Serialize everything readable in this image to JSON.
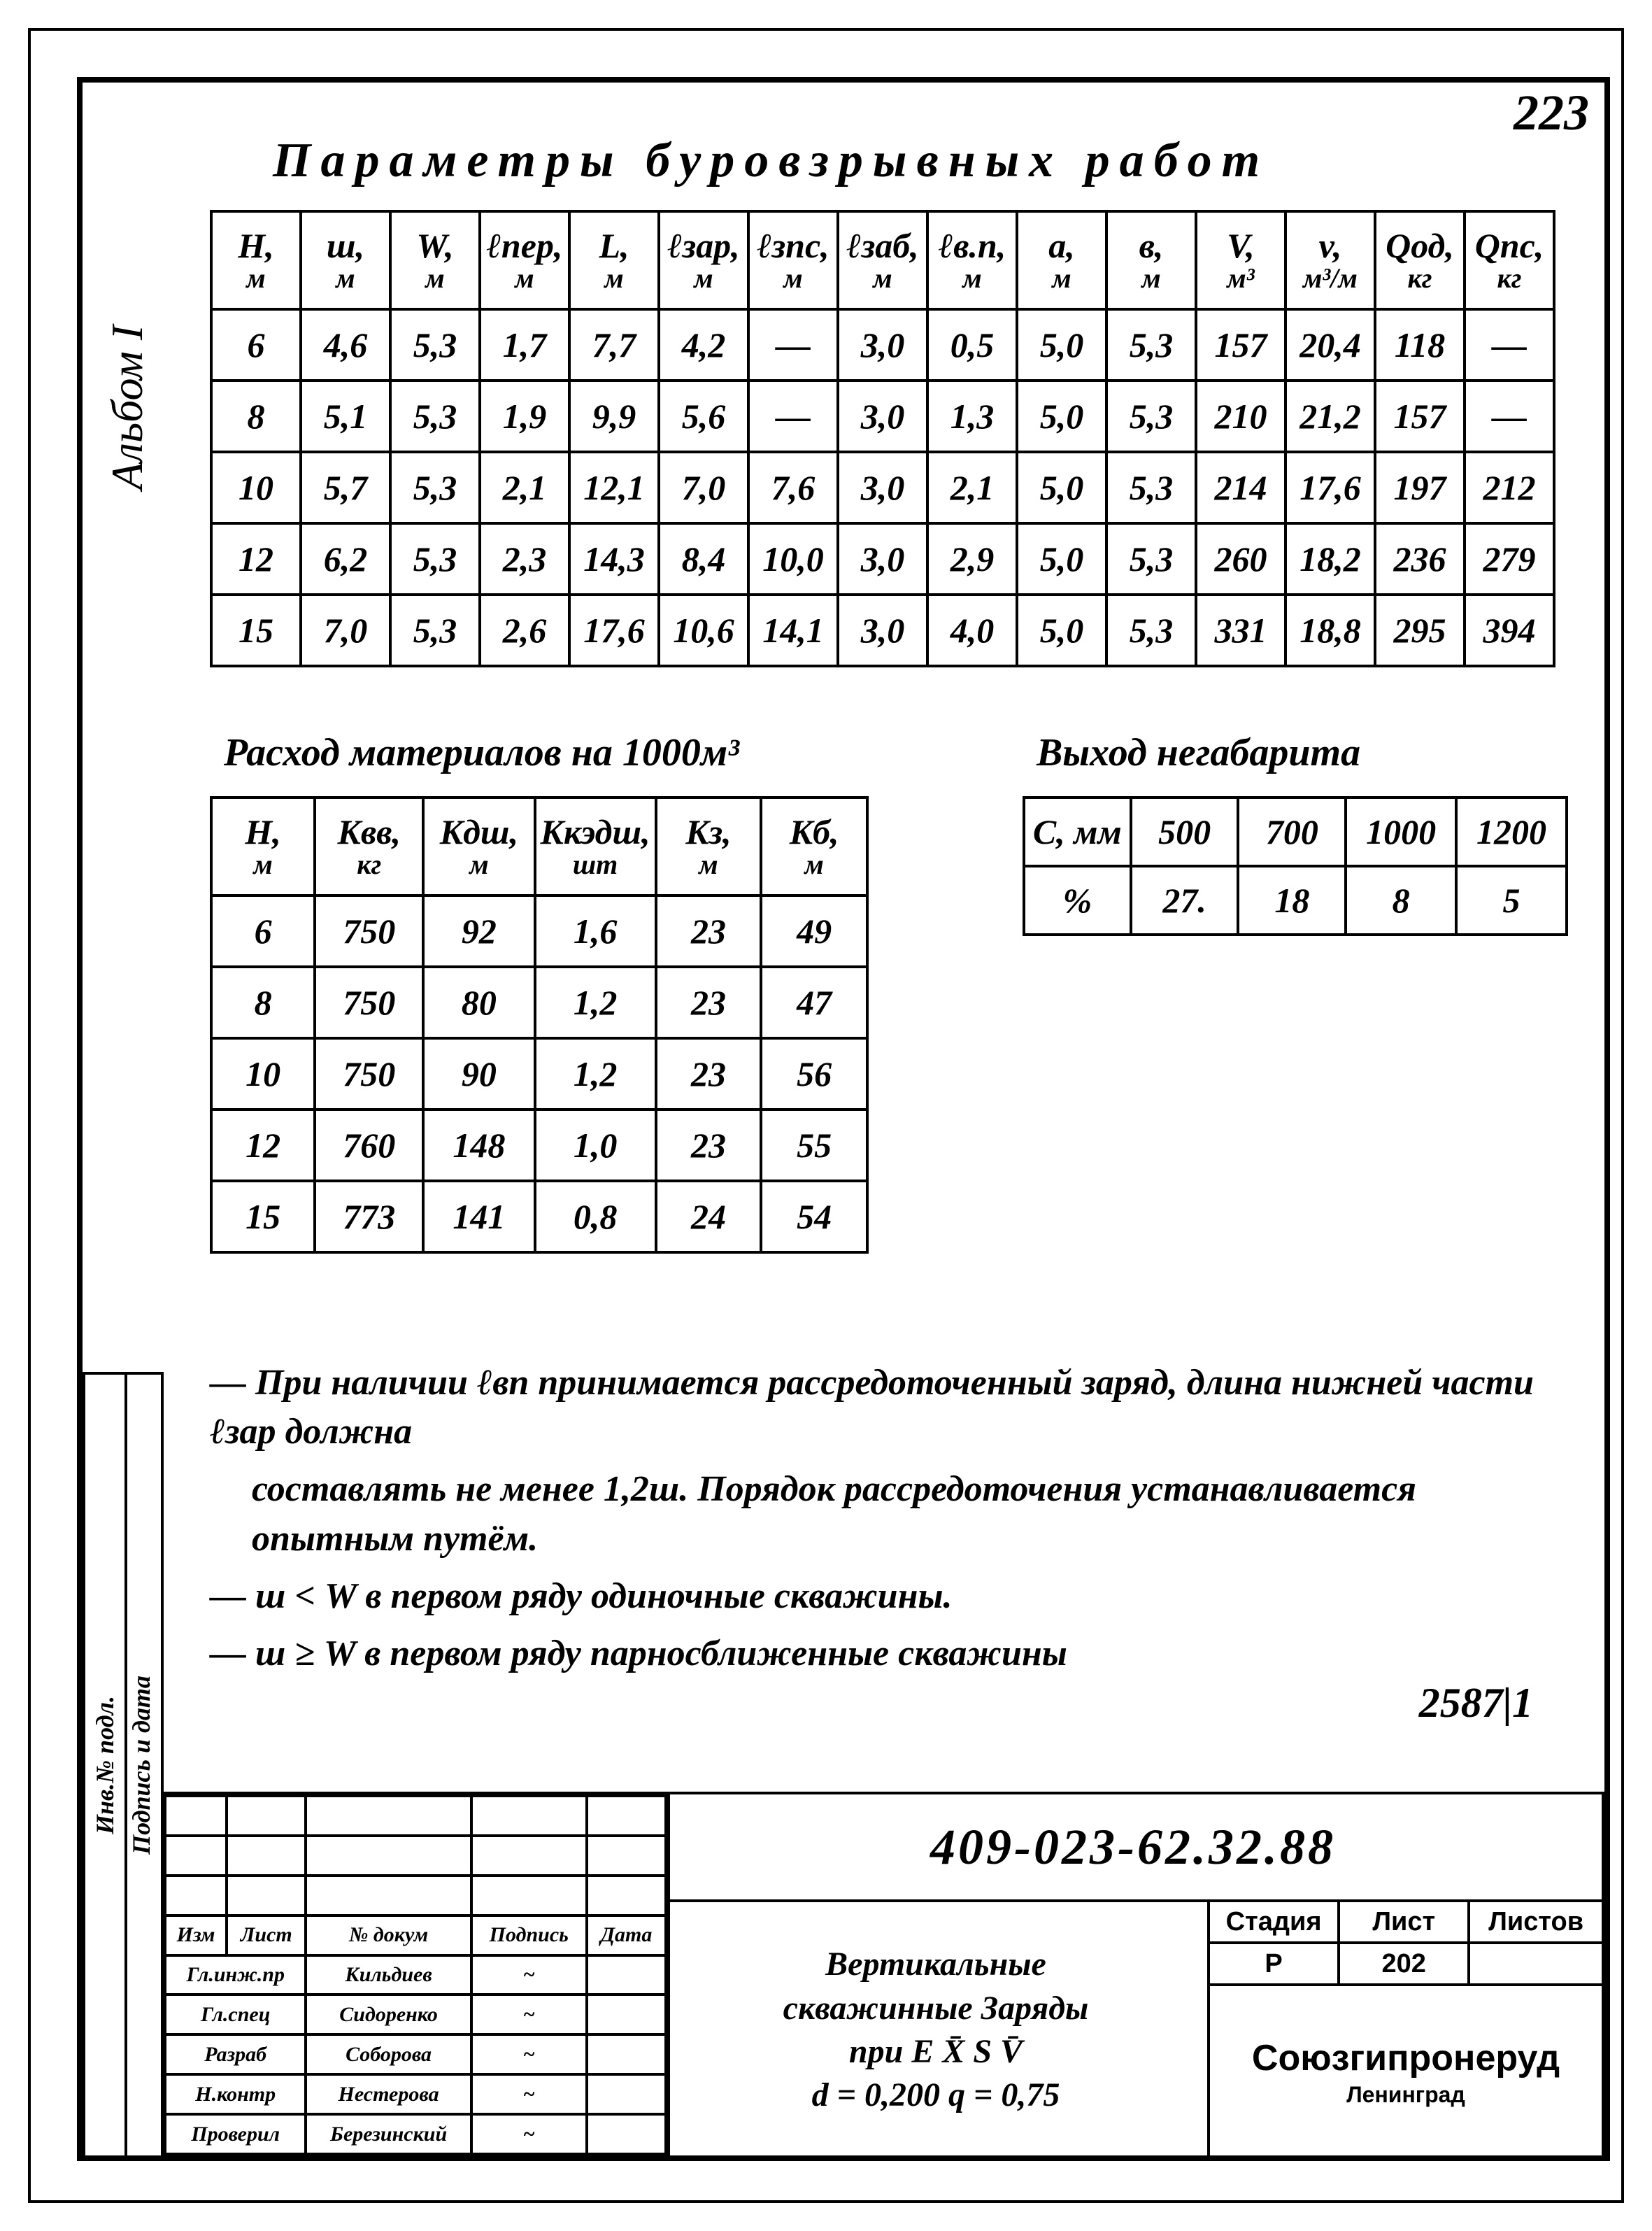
{
  "page_number": "223",
  "side_label": "Альбом I",
  "title": "Параметры буровзрывных работ",
  "table1": {
    "headers": [
      {
        "t": "H,",
        "u": "м"
      },
      {
        "t": "ш,",
        "u": "м"
      },
      {
        "t": "W,",
        "u": "м"
      },
      {
        "t": "ℓпер,",
        "u": "м"
      },
      {
        "t": "L,",
        "u": "м"
      },
      {
        "t": "ℓзар,",
        "u": "м"
      },
      {
        "t": "ℓзпс,",
        "u": "м"
      },
      {
        "t": "ℓзаб,",
        "u": "м"
      },
      {
        "t": "ℓв.п,",
        "u": "м"
      },
      {
        "t": "a,",
        "u": "м"
      },
      {
        "t": "в,",
        "u": "м"
      },
      {
        "t": "V,",
        "u": "м³"
      },
      {
        "t": "v,",
        "u": "м³/м"
      },
      {
        "t": "Qод,",
        "u": "кг"
      },
      {
        "t": "Qпс,",
        "u": "кг"
      }
    ],
    "rows": [
      [
        "6",
        "4,6",
        "5,3",
        "1,7",
        "7,7",
        "4,2",
        "—",
        "3,0",
        "0,5",
        "5,0",
        "5,3",
        "157",
        "20,4",
        "118",
        "—"
      ],
      [
        "8",
        "5,1",
        "5,3",
        "1,9",
        "9,9",
        "5,6",
        "—",
        "3,0",
        "1,3",
        "5,0",
        "5,3",
        "210",
        "21,2",
        "157",
        "—"
      ],
      [
        "10",
        "5,7",
        "5,3",
        "2,1",
        "12,1",
        "7,0",
        "7,6",
        "3,0",
        "2,1",
        "5,0",
        "5,3",
        "214",
        "17,6",
        "197",
        "212"
      ],
      [
        "12",
        "6,2",
        "5,3",
        "2,3",
        "14,3",
        "8,4",
        "10,0",
        "3,0",
        "2,9",
        "5,0",
        "5,3",
        "260",
        "18,2",
        "236",
        "279"
      ],
      [
        "15",
        "7,0",
        "5,3",
        "2,6",
        "17,6",
        "10,6",
        "14,1",
        "3,0",
        "4,0",
        "5,0",
        "5,3",
        "331",
        "18,8",
        "295",
        "394"
      ]
    ]
  },
  "table2": {
    "caption": "Расход материалов на 1000м³",
    "headers": [
      {
        "t": "H,",
        "u": "м"
      },
      {
        "t": "Kвв,",
        "u": "кг"
      },
      {
        "t": "Kдш,",
        "u": "м"
      },
      {
        "t": "Kкэдш,",
        "u": "шт"
      },
      {
        "t": "Kз,",
        "u": "м"
      },
      {
        "t": "Kб,",
        "u": "м"
      }
    ],
    "rows": [
      [
        "6",
        "750",
        "92",
        "1,6",
        "23",
        "49"
      ],
      [
        "8",
        "750",
        "80",
        "1,2",
        "23",
        "47"
      ],
      [
        "10",
        "750",
        "90",
        "1,2",
        "23",
        "56"
      ],
      [
        "12",
        "760",
        "148",
        "1,0",
        "23",
        "55"
      ],
      [
        "15",
        "773",
        "141",
        "0,8",
        "24",
        "54"
      ]
    ]
  },
  "table3": {
    "caption": "Выход негабарита",
    "headers": [
      "С, мм",
      "500",
      "700",
      "1000",
      "1200"
    ],
    "rows": [
      [
        "%",
        "27.",
        "18",
        "8",
        "5"
      ]
    ]
  },
  "notes": {
    "n1": "— При наличии ℓвп принимается рассредоточенный заряд, длина нижней части ℓзар должна",
    "n1b": "составлять не менее 1,2ш. Порядок рассредоточения устанавливается опытным путём.",
    "n2": "— ш < W в первом ряду одиночные скважины.",
    "n3": "— ш ≥ W в первом ряду парносближенные скважины"
  },
  "doc_ref": "2587|1",
  "title_block": {
    "v1": "Инв.№ подл.",
    "v2": "Подпись и дата",
    "code": "409-023-62.32.88",
    "desc_l1": "Вертикальные",
    "desc_l2": "скважинные   Заряды",
    "desc_l3": "при Е  X̄        S V̄",
    "desc_l4": "d = 0,200     q = 0,75",
    "stage_h": "Стадия",
    "sheet_h": "Лист",
    "sheets_h": "Листов",
    "stage": "Р",
    "sheet": "202",
    "sheets": "",
    "org": "Союзгипронеруд",
    "city": "Ленинград",
    "rev_hdr": [
      "Изм",
      "Лист",
      "№ докум",
      "Подпись",
      "Дата"
    ],
    "rev_rows": [
      [
        "Гл.инж.пр",
        "Кильдиев",
        "",
        ""
      ],
      [
        "Гл.спец",
        "Сидоренко",
        "",
        ""
      ],
      [
        "Разраб",
        "Соборова",
        "",
        ""
      ],
      [
        "Н.контр",
        "Нестерова",
        "",
        ""
      ],
      [
        "Проверил",
        "Березинский",
        "",
        ""
      ]
    ]
  }
}
